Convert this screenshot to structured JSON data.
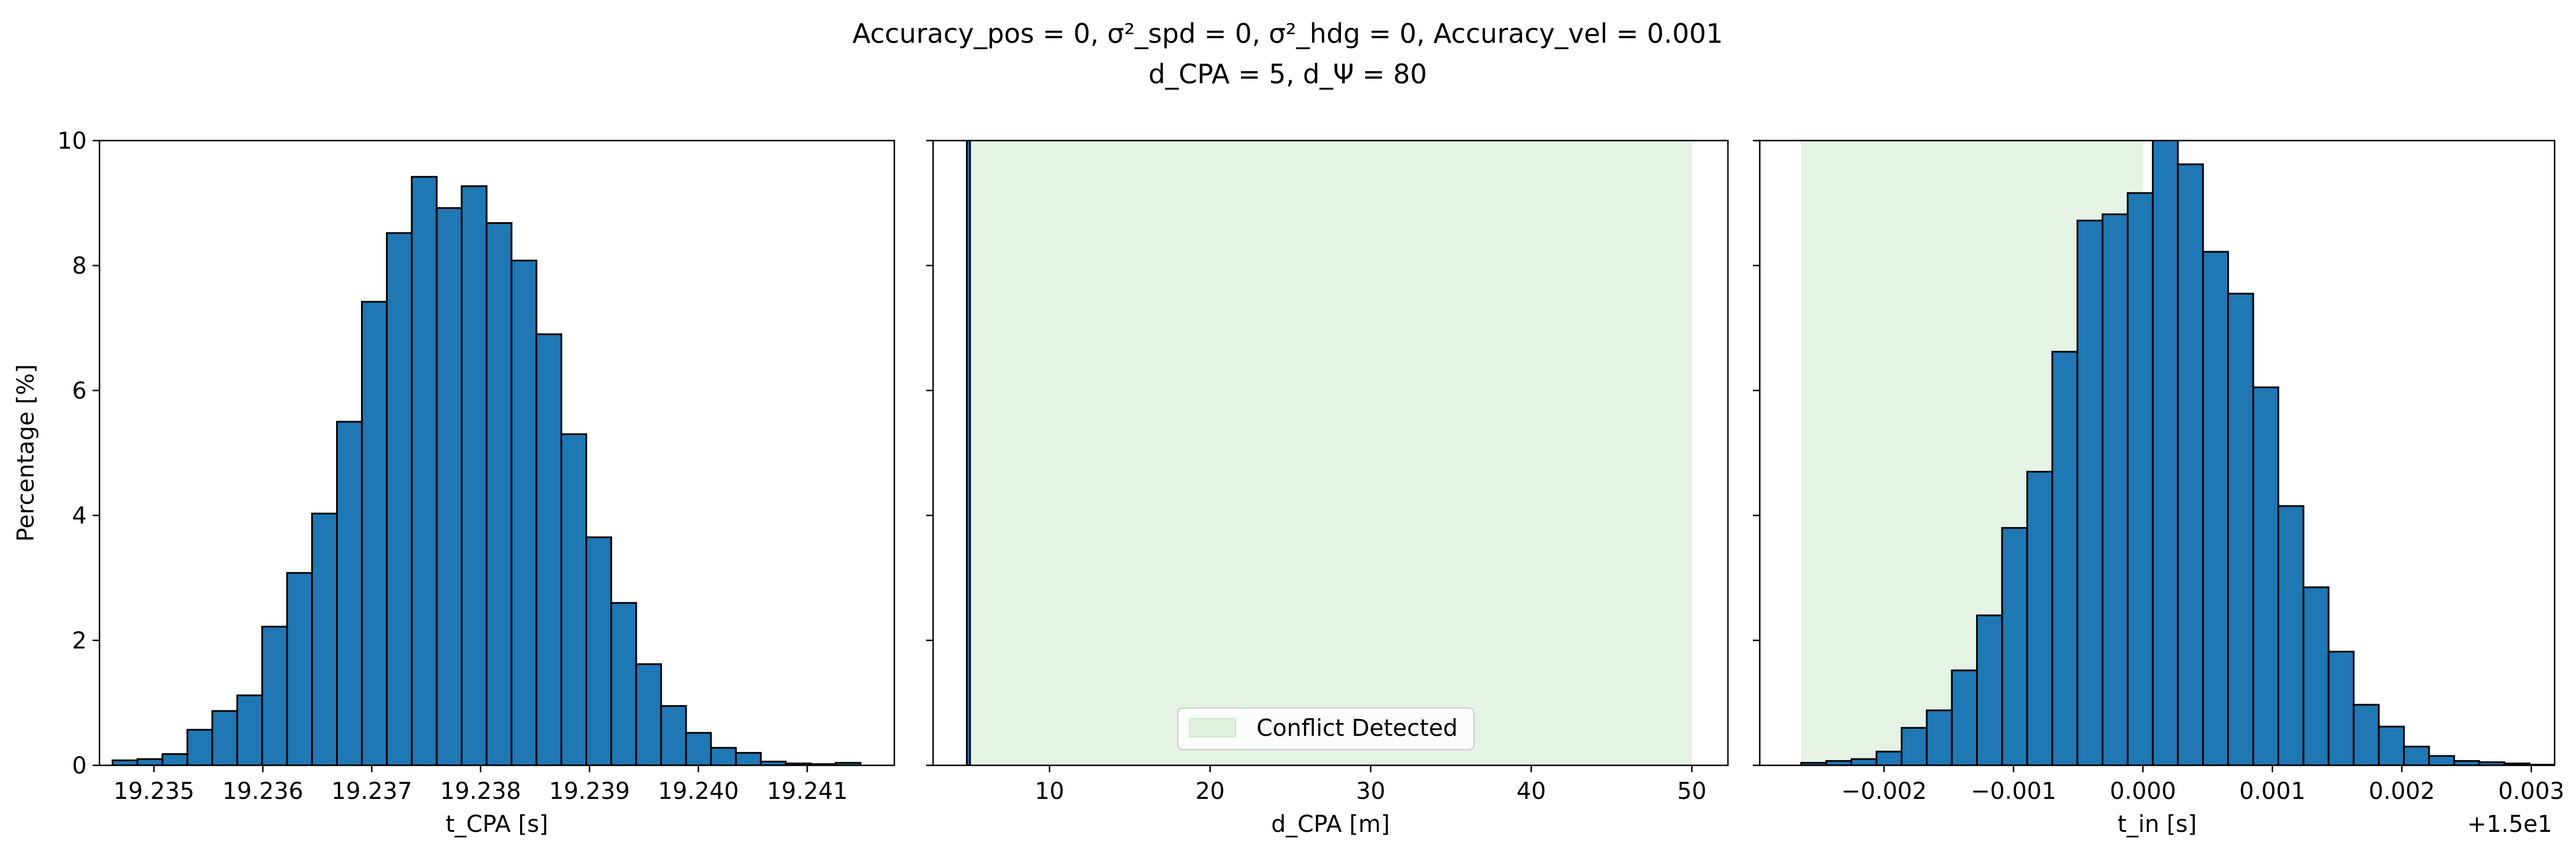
{
  "figure": {
    "title_line1": "Accuracy_pos = 0, σ²_spd = 0, σ²_hdg = 0, Accuracy_vel = 0.001",
    "title_line2": "d_CPA = 5, d_Ψ = 80"
  },
  "chart_data": [
    {
      "type": "bar",
      "subtype": "histogram",
      "xlabel": "t_CPA [s]",
      "ylabel": "Percentage [%]",
      "xlim": [
        19.2345,
        19.2418
      ],
      "ylim": [
        0,
        10
      ],
      "xticks": [
        19.235,
        19.236,
        19.237,
        19.238,
        19.239,
        19.24,
        19.241
      ],
      "xtick_labels": [
        "19.235",
        "19.236",
        "19.237",
        "19.238",
        "19.239",
        "19.240",
        "19.241"
      ],
      "yticks": [
        0,
        2,
        4,
        6,
        8,
        10
      ],
      "ytick_labels": [
        "0",
        "2",
        "4",
        "6",
        "8",
        "10"
      ],
      "bin_start": 19.23462,
      "bin_width": 0.000229,
      "values": [
        0.08,
        0.1,
        0.18,
        0.57,
        0.87,
        1.12,
        2.22,
        3.08,
        4.03,
        5.5,
        7.42,
        8.52,
        9.42,
        8.92,
        9.27,
        8.68,
        8.08,
        6.9,
        5.3,
        3.65,
        2.6,
        1.62,
        0.95,
        0.52,
        0.28,
        0.2,
        0.06,
        0.03,
        0.02,
        0.04
      ],
      "bar_color": "#1f77b4",
      "edge_color": "#000000",
      "grid": false
    },
    {
      "type": "bar",
      "subtype": "histogram",
      "xlabel": "d_CPA [m]",
      "xlim": [
        2.75,
        52.25
      ],
      "ylim": [
        0,
        10
      ],
      "xticks": [
        10,
        20,
        30,
        40,
        50
      ],
      "xtick_labels": [
        "10",
        "20",
        "30",
        "40",
        "50"
      ],
      "bin_start": 4.85,
      "bin_width": 0.2,
      "values": [
        100
      ],
      "bar_color": "#1f77b4",
      "edge_color": "#000000",
      "shaded_region": {
        "from": 5,
        "to": 50,
        "color": "#2ca02c",
        "opacity": 0.12
      },
      "legend": {
        "label": "Conflict Detected",
        "position": "lower center"
      },
      "grid": false
    },
    {
      "type": "bar",
      "subtype": "histogram",
      "xlabel": "t_in [s]",
      "offset_label": "+1.5e1",
      "xlim": [
        -0.00296,
        0.00318
      ],
      "ylim": [
        0,
        10
      ],
      "xticks": [
        -0.002,
        -0.001,
        0.0,
        0.001,
        0.002,
        0.003
      ],
      "xtick_labels": [
        "−0.002",
        "−0.001",
        "0.000",
        "0.001",
        "0.002",
        "0.003"
      ],
      "bin_start": -0.00264,
      "bin_width": 0.000194,
      "values": [
        0.04,
        0.07,
        0.1,
        0.22,
        0.6,
        0.88,
        1.52,
        2.4,
        3.8,
        4.7,
        6.62,
        8.72,
        8.82,
        9.16,
        10.02,
        9.62,
        8.22,
        7.55,
        6.05,
        4.15,
        2.85,
        1.82,
        0.97,
        0.62,
        0.3,
        0.15,
        0.07,
        0.05,
        0.03,
        0.01
      ],
      "bar_color": "#1f77b4",
      "edge_color": "#000000",
      "shaded_region": {
        "from": -0.00264,
        "to": 0.0,
        "color": "#2ca02c",
        "opacity": 0.12
      },
      "grid": false
    }
  ]
}
